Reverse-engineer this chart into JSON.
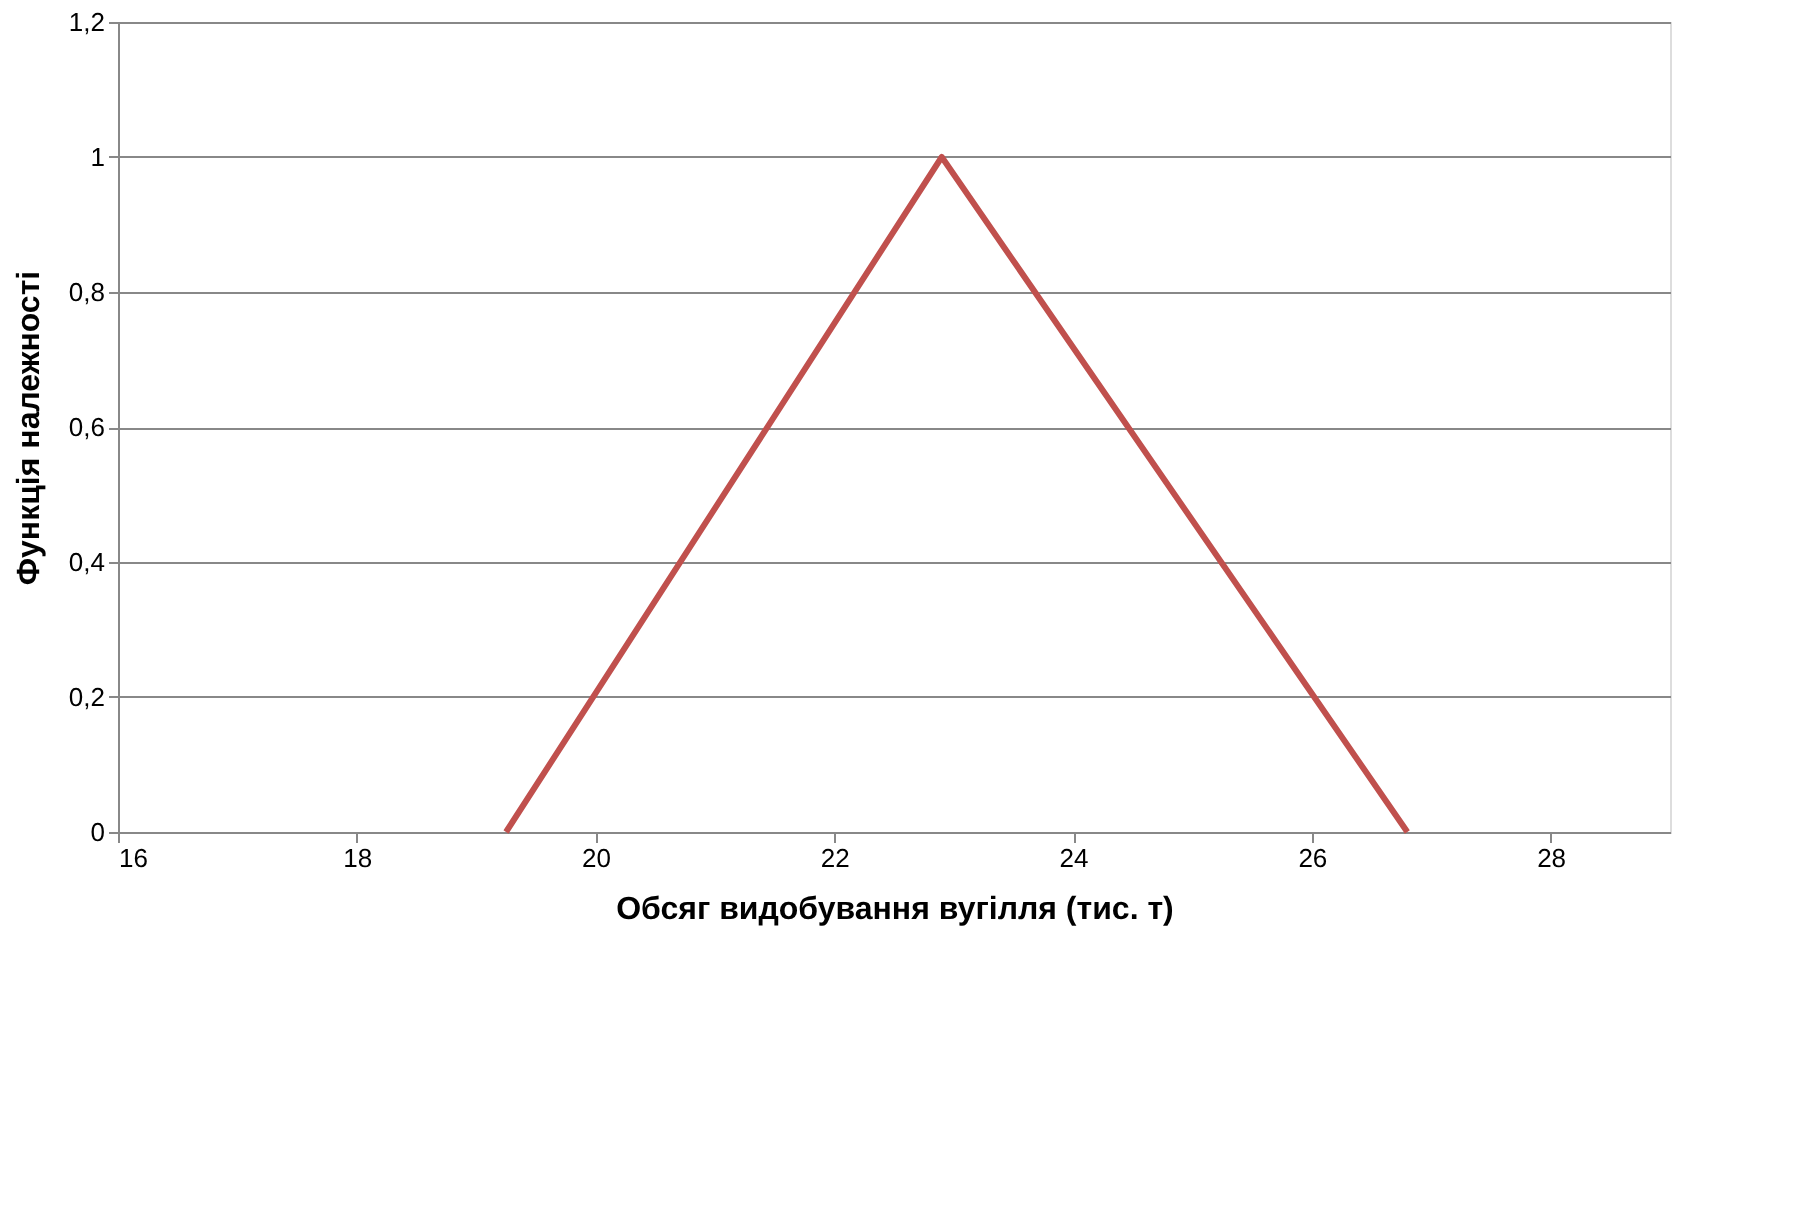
{
  "chart_data": {
    "type": "line",
    "xlabel": "Обсяг видобування вугілля (тис. т)",
    "ylabel": "Функція належності",
    "x": [
      19.25,
      22.9,
      26.8
    ],
    "series": [
      {
        "color": "#c0504d",
        "values": [
          0,
          1,
          0
        ]
      }
    ],
    "xlim": [
      16,
      29
    ],
    "xticks": [
      16,
      18,
      20,
      22,
      24,
      26,
      28
    ],
    "ylim": [
      0,
      1.2
    ],
    "yticks": [
      0,
      {
        "value": 0.2,
        "label": "0,2"
      },
      {
        "value": 0.4,
        "label": "0,4"
      },
      {
        "value": 0.6,
        "label": "0,6"
      },
      {
        "value": 0.8,
        "label": "0,8"
      },
      1,
      {
        "value": 1.2,
        "label": "1,2"
      }
    ],
    "grid": "y",
    "marker": "none",
    "line_style": "solid"
  }
}
